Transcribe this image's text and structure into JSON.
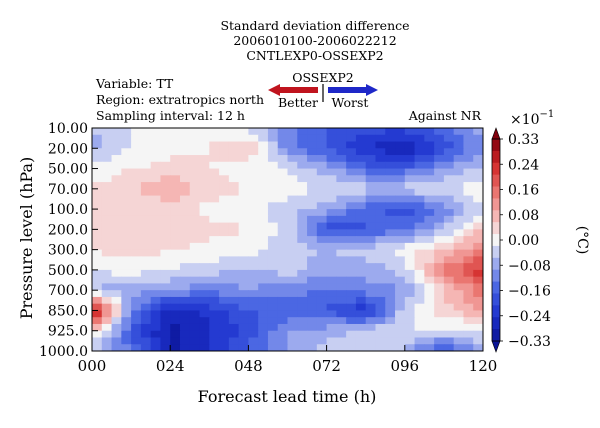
{
  "chart_data": {
    "type": "heatmap",
    "plot_style": "filled-contour",
    "title_lines": [
      "Standard deviation difference",
      "2006010100-2006022212",
      "CNTLEXP0-OSSEXP2"
    ],
    "info_lines": [
      "Variable: TT",
      "Region: extratropics north",
      "Sampling interval: 12 h"
    ],
    "legend": {
      "title": "OSSEXP2",
      "better_label": "Better",
      "worst_label": "Worst",
      "better_color": "#c0141e",
      "worst_color": "#1e28c8"
    },
    "corner_label": "Against NR",
    "xlabel": "Forecast lead time (h)",
    "ylabel": "Pressure level (hPa)",
    "x_ticks": [
      "000",
      "024",
      "048",
      "072",
      "096",
      "120"
    ],
    "y_levels": [
      "10.00",
      "20.00",
      "50.00",
      "70.00",
      "100.0",
      "200.0",
      "300.0",
      "500.0",
      "700.0",
      "850.0",
      "925.0",
      "1000.0"
    ],
    "colorbar": {
      "unit": "(°C)",
      "multiplier": "×10",
      "exponent": "−1",
      "tick_labels": [
        "0.33",
        "0.24",
        "0.16",
        "0.08",
        "0.00",
        "−0.08",
        "−0.16",
        "−0.24",
        "−0.33"
      ],
      "vmin": -0.33,
      "vmax": 0.33
    },
    "lead_times_h": [
      0,
      12,
      24,
      36,
      48,
      60,
      72,
      84,
      96,
      108,
      120
    ],
    "grid_values": [
      [
        -0.06,
        -0.02,
        0.01,
        0.0,
        -0.03,
        -0.12,
        -0.18,
        -0.2,
        -0.2,
        -0.15,
        -0.08
      ],
      [
        -0.07,
        -0.02,
        0.01,
        0.02,
        0.06,
        -0.12,
        -0.18,
        -0.25,
        -0.3,
        -0.2,
        -0.1
      ],
      [
        0.0,
        0.02,
        0.03,
        0.02,
        0.0,
        -0.02,
        -0.08,
        -0.16,
        -0.16,
        -0.1,
        -0.04
      ],
      [
        0.02,
        0.05,
        0.1,
        0.04,
        0.02,
        0.0,
        -0.02,
        -0.04,
        -0.04,
        -0.02,
        0.0
      ],
      [
        0.02,
        0.03,
        0.03,
        0.01,
        0.0,
        -0.04,
        -0.08,
        -0.16,
        -0.2,
        -0.12,
        -0.02
      ],
      [
        0.02,
        0.04,
        0.04,
        0.03,
        0.02,
        -0.04,
        -0.2,
        -0.18,
        -0.14,
        -0.06,
        0.06
      ],
      [
        0.02,
        0.04,
        0.02,
        0.01,
        0.0,
        -0.04,
        -0.06,
        -0.04,
        0.0,
        0.06,
        0.14
      ],
      [
        -0.02,
        0.0,
        -0.02,
        -0.04,
        -0.06,
        -0.04,
        -0.08,
        -0.08,
        -0.04,
        0.14,
        0.24
      ],
      [
        -0.06,
        -0.08,
        -0.1,
        -0.12,
        -0.1,
        -0.12,
        -0.14,
        -0.12,
        -0.1,
        0.06,
        0.16
      ],
      [
        0.32,
        -0.12,
        -0.28,
        -0.24,
        -0.18,
        -0.16,
        -0.18,
        -0.24,
        -0.04,
        0.04,
        0.1
      ],
      [
        0.06,
        -0.18,
        -0.3,
        -0.26,
        -0.2,
        -0.1,
        -0.08,
        -0.04,
        -0.02,
        -0.02,
        -0.04
      ],
      [
        -0.06,
        -0.14,
        -0.3,
        -0.25,
        -0.16,
        -0.1,
        -0.04,
        -0.02,
        -0.06,
        -0.2,
        -0.06
      ]
    ]
  }
}
